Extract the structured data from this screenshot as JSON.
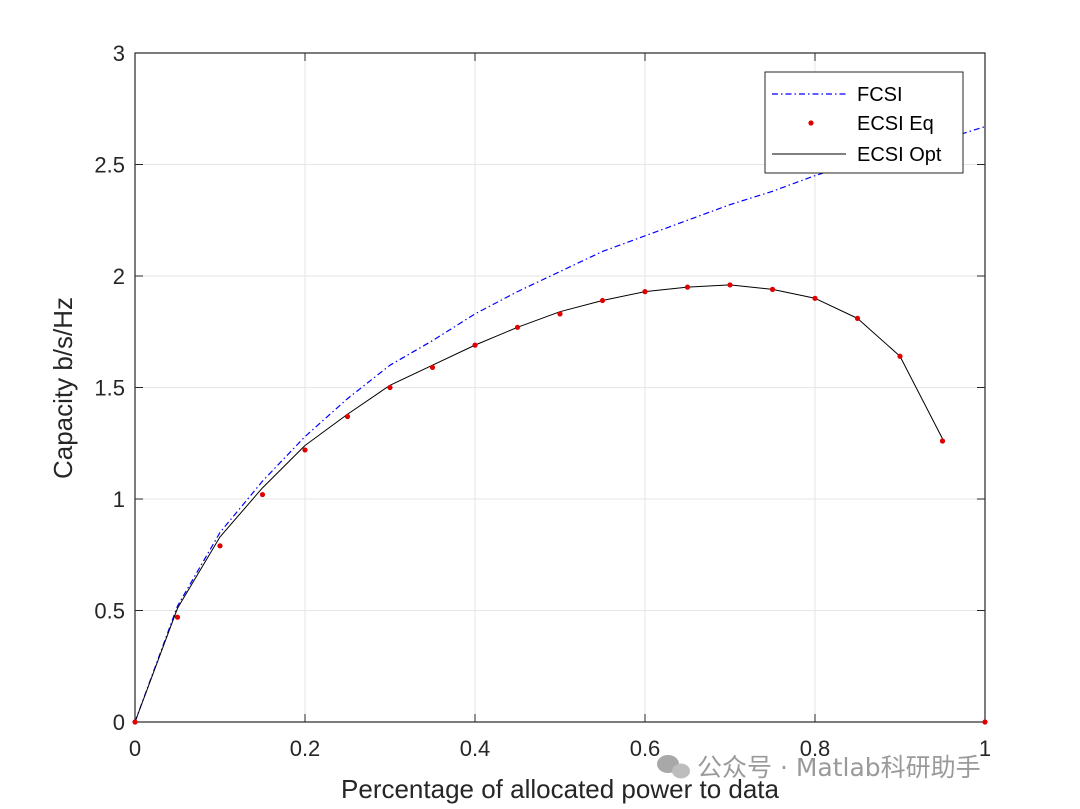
{
  "chart_data": {
    "type": "line",
    "xlabel": "Percentage of allocated power to data",
    "ylabel": "Capacity b/s/Hz",
    "xlim": [
      0,
      1
    ],
    "ylim": [
      0,
      3
    ],
    "xticks": [
      "0",
      "0.2",
      "0.4",
      "0.6",
      "0.8",
      "1"
    ],
    "yticks": [
      "0",
      "0.5",
      "1",
      "1.5",
      "2",
      "2.5",
      "3"
    ],
    "grid": true,
    "legend_position": "top-right",
    "series": [
      {
        "name": "FCSI",
        "style": "dash-dot",
        "color": "#0000ff",
        "x": [
          0,
          0.05,
          0.1,
          0.15,
          0.2,
          0.25,
          0.3,
          0.35,
          0.4,
          0.45,
          0.5,
          0.55,
          0.6,
          0.65,
          0.7,
          0.75,
          0.8,
          0.85,
          0.9,
          0.95,
          1.0
        ],
        "y": [
          0,
          0.52,
          0.85,
          1.08,
          1.28,
          1.45,
          1.6,
          1.71,
          1.83,
          1.93,
          2.02,
          2.11,
          2.18,
          2.25,
          2.32,
          2.38,
          2.45,
          2.51,
          2.56,
          2.61,
          2.67
        ]
      },
      {
        "name": "ECSI Eq",
        "style": "markers",
        "color": "#e00000",
        "x": [
          0,
          0.05,
          0.1,
          0.15,
          0.2,
          0.25,
          0.3,
          0.35,
          0.4,
          0.45,
          0.5,
          0.55,
          0.6,
          0.65,
          0.7,
          0.75,
          0.8,
          0.85,
          0.9,
          0.95,
          1.0
        ],
        "y": [
          0,
          0.47,
          0.79,
          1.02,
          1.22,
          1.37,
          1.5,
          1.59,
          1.69,
          1.77,
          1.83,
          1.89,
          1.93,
          1.95,
          1.96,
          1.94,
          1.9,
          1.81,
          1.64,
          1.26,
          0
        ]
      },
      {
        "name": "ECSI Opt",
        "style": "solid",
        "color": "#000000",
        "x": [
          0,
          0.05,
          0.1,
          0.15,
          0.2,
          0.25,
          0.3,
          0.35,
          0.4,
          0.45,
          0.5,
          0.55,
          0.6,
          0.65,
          0.7,
          0.75,
          0.8,
          0.85,
          0.9,
          0.95
        ],
        "y": [
          0,
          0.51,
          0.83,
          1.05,
          1.24,
          1.38,
          1.51,
          1.6,
          1.69,
          1.77,
          1.84,
          1.89,
          1.93,
          1.95,
          1.96,
          1.94,
          1.9,
          1.81,
          1.64,
          1.27
        ]
      }
    ]
  },
  "watermark": {
    "text": "公众号 · Matlab科研助手",
    "icon": "wechat-icon"
  }
}
